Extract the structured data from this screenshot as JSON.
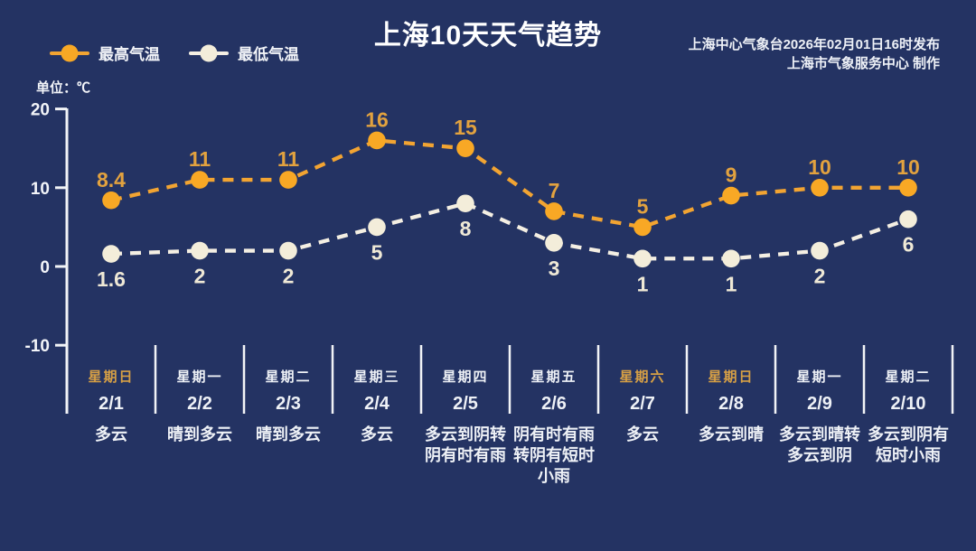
{
  "header": {
    "title": "上海10天天气趋势",
    "publisher_line1": "上海中心气象台2026年02月01日16时发布",
    "publisher_line2": "上海市气象服务中心  制作"
  },
  "legend": {
    "high_label": "最高气温",
    "low_label": "最低气温"
  },
  "unit_label": "单位：℃",
  "colors": {
    "background": "#243363",
    "axis": "#f2f4f7",
    "tick_text": "#f3f5f9",
    "weekday_text": "#eef1f6",
    "weekend_text": "#d7a045"
  },
  "chart_data": {
    "type": "line",
    "title": "上海10天天气趋势",
    "ylabel": "℃",
    "ylim": [
      -10,
      20
    ],
    "yticks": [
      20,
      10,
      0,
      -10
    ],
    "grid": false,
    "legend_position": "top-left",
    "categories": [
      "2/1",
      "2/2",
      "2/3",
      "2/4",
      "2/5",
      "2/6",
      "2/7",
      "2/8",
      "2/9",
      "2/10"
    ],
    "series": [
      {
        "name": "最高气温",
        "values": [
          8.4,
          11,
          11,
          16,
          15,
          7,
          5,
          9,
          10,
          10
        ],
        "color": "#f2a432",
        "point_color": "#f8a825",
        "label_color": "#e2a23f",
        "dashed": true,
        "label_side": "above"
      },
      {
        "name": "最低气温",
        "values": [
          1.6,
          2,
          2,
          5,
          8,
          3,
          1,
          1,
          2,
          6
        ],
        "color": "#f4efe3",
        "point_color": "#f3edda",
        "label_color": "#efe9d6",
        "dashed": true,
        "label_side": "below"
      }
    ],
    "days": [
      {
        "weekday": "星期日",
        "date": "2/1",
        "weather": "多云",
        "weekend": true
      },
      {
        "weekday": "星期一",
        "date": "2/2",
        "weather": "晴到多云",
        "weekend": false
      },
      {
        "weekday": "星期二",
        "date": "2/3",
        "weather": "晴到多云",
        "weekend": false
      },
      {
        "weekday": "星期三",
        "date": "2/4",
        "weather": "多云",
        "weekend": false
      },
      {
        "weekday": "星期四",
        "date": "2/5",
        "weather": "多云到阴转阴有时有雨",
        "weekend": false
      },
      {
        "weekday": "星期五",
        "date": "2/6",
        "weather": "阴有时有雨转阴有短时小雨",
        "weekend": false
      },
      {
        "weekday": "星期六",
        "date": "2/7",
        "weather": "多云",
        "weekend": true
      },
      {
        "weekday": "星期日",
        "date": "2/8",
        "weather": "多云到晴",
        "weekend": true
      },
      {
        "weekday": "星期一",
        "date": "2/9",
        "weather": "多云到晴转多云到阴",
        "weekend": false
      },
      {
        "weekday": "星期二",
        "date": "2/10",
        "weather": "多云到阴有短时小雨",
        "weekend": false
      }
    ]
  }
}
